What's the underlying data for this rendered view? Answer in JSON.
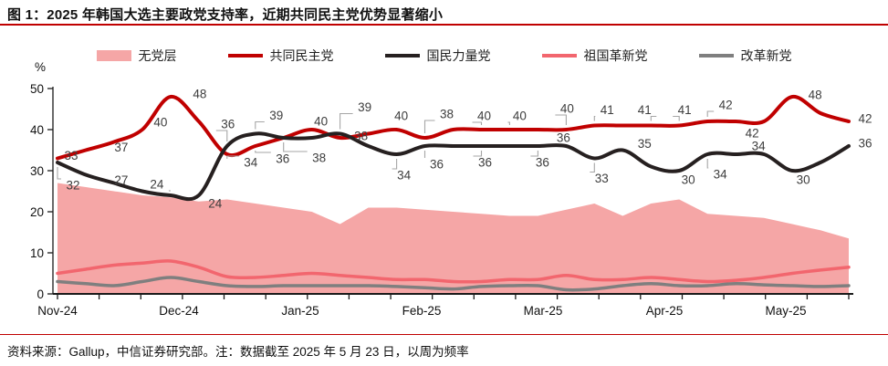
{
  "figure": {
    "title": "图 1：2025 年韩国大选主要政党支持率，近期共同民主党优势显著缩小",
    "source_note": "资料来源：Gallup，中信证券研究部。注：数据截至 2025 年 5 月 23 日，以周为频率",
    "accent_color": "#C00000"
  },
  "chart_data": {
    "type": "area+line",
    "unit": "%",
    "ylim": [
      0,
      50
    ],
    "yticks": [
      0,
      10,
      20,
      30,
      40,
      50
    ],
    "x_months": [
      "Nov-24",
      "Dec-24",
      "Jan-25",
      "Feb-25",
      "Mar-25",
      "Apr-25",
      "May-25"
    ],
    "weeks": 29,
    "grid": false,
    "legend_position": "top",
    "series": [
      {
        "name": "无党层",
        "type": "area",
        "color": "#F5A6A6",
        "values": [
          27,
          26,
          25,
          24,
          23.5,
          22.5,
          23,
          22,
          21,
          20,
          17,
          21,
          21,
          20.5,
          20,
          19.5,
          19,
          19,
          20.5,
          22,
          19,
          22,
          23,
          19.5,
          19,
          18.5,
          17,
          15.5,
          13.5
        ]
      },
      {
        "name": "共同民主党",
        "type": "line",
        "color": "#C00000",
        "width": 4,
        "values": [
          33,
          35,
          37,
          40,
          48,
          42,
          34,
          36,
          38,
          40,
          38,
          39,
          40,
          38,
          40,
          40,
          40,
          40,
          40,
          41,
          41,
          41,
          41,
          42,
          42,
          42,
          48,
          44,
          42
        ],
        "labels": [
          [
            0,
            33,
            15,
            -3,
            0
          ],
          [
            2,
            37,
            8,
            6,
            0
          ],
          [
            3,
            40,
            20,
            -8,
            0
          ],
          [
            4,
            48,
            32,
            -3,
            0
          ],
          [
            6,
            34,
            26,
            9,
            1
          ],
          [
            7,
            36,
            30,
            14,
            1
          ],
          [
            8,
            38,
            39,
            22,
            1
          ],
          [
            9,
            40,
            10,
            -9,
            0
          ],
          [
            10,
            38,
            23,
            -2,
            0
          ],
          [
            12,
            40,
            5,
            -15,
            0
          ],
          [
            13,
            38,
            24,
            -26,
            1
          ],
          [
            15,
            40,
            3,
            -15,
            1
          ],
          [
            16,
            40,
            11,
            -15,
            1
          ],
          [
            18,
            40,
            1,
            -23,
            1
          ],
          [
            19,
            41,
            14,
            -17,
            1
          ],
          [
            21,
            41,
            -7,
            -17,
            1
          ],
          [
            22,
            41,
            6,
            -17,
            1
          ],
          [
            23,
            42,
            20,
            -18,
            1
          ],
          [
            25,
            42,
            -13,
            13,
            0
          ],
          [
            26,
            48,
            25,
            -2,
            0
          ],
          [
            28,
            42,
            18,
            -3,
            0
          ]
        ]
      },
      {
        "name": "国民力量党",
        "type": "line",
        "color": "#262020",
        "width": 4,
        "values": [
          32,
          29,
          27,
          25,
          24,
          24,
          36,
          39,
          38,
          38,
          39,
          36,
          34,
          36,
          36,
          36,
          36,
          36,
          36,
          33,
          35,
          31,
          30,
          34,
          34,
          34,
          30,
          32,
          36
        ],
        "labels": [
          [
            0,
            32,
            17,
            25,
            1
          ],
          [
            2,
            27,
            8,
            -3,
            0
          ],
          [
            4,
            24,
            -15,
            -12,
            1
          ],
          [
            5,
            24,
            18,
            9,
            0
          ],
          [
            6,
            36,
            1,
            -24,
            1
          ],
          [
            7,
            39,
            23,
            -20,
            1
          ],
          [
            10,
            39,
            27,
            -29,
            1
          ],
          [
            12,
            34,
            8,
            23,
            1
          ],
          [
            13,
            36,
            13,
            20,
            1
          ],
          [
            15,
            36,
            4,
            18,
            1
          ],
          [
            17,
            36,
            5,
            18,
            1
          ],
          [
            18,
            36,
            -3,
            -9,
            0
          ],
          [
            19,
            33,
            8,
            22,
            1
          ],
          [
            20,
            35,
            24,
            -7,
            0
          ],
          [
            22,
            30,
            10,
            10,
            0
          ],
          [
            23,
            34,
            14,
            22,
            1
          ],
          [
            25,
            34,
            -6,
            -9,
            0
          ],
          [
            26,
            30,
            12,
            10,
            0
          ],
          [
            28,
            36,
            18,
            -3,
            0
          ]
        ]
      },
      {
        "name": "祖国革新党",
        "type": "line",
        "color": "#F2666E",
        "width": 3.5,
        "values": [
          5,
          6,
          7,
          7.5,
          8,
          6.5,
          4.2,
          4,
          4.5,
          5,
          4.5,
          4,
          3.5,
          3.5,
          3,
          3,
          3.5,
          3.5,
          4.5,
          3.5,
          3.5,
          4,
          3.5,
          3,
          3.3,
          4,
          5,
          5.8,
          6.5
        ]
      },
      {
        "name": "改革新党",
        "type": "line",
        "color": "#7F7F7F",
        "width": 3.5,
        "values": [
          3,
          2.5,
          2,
          3,
          4,
          3,
          2,
          1.8,
          2,
          2,
          2,
          2,
          1.8,
          1.5,
          1.2,
          1.8,
          2,
          2,
          1,
          1.2,
          2,
          2.5,
          2,
          2,
          2.5,
          2.2,
          2,
          1.8,
          2
        ]
      }
    ]
  }
}
